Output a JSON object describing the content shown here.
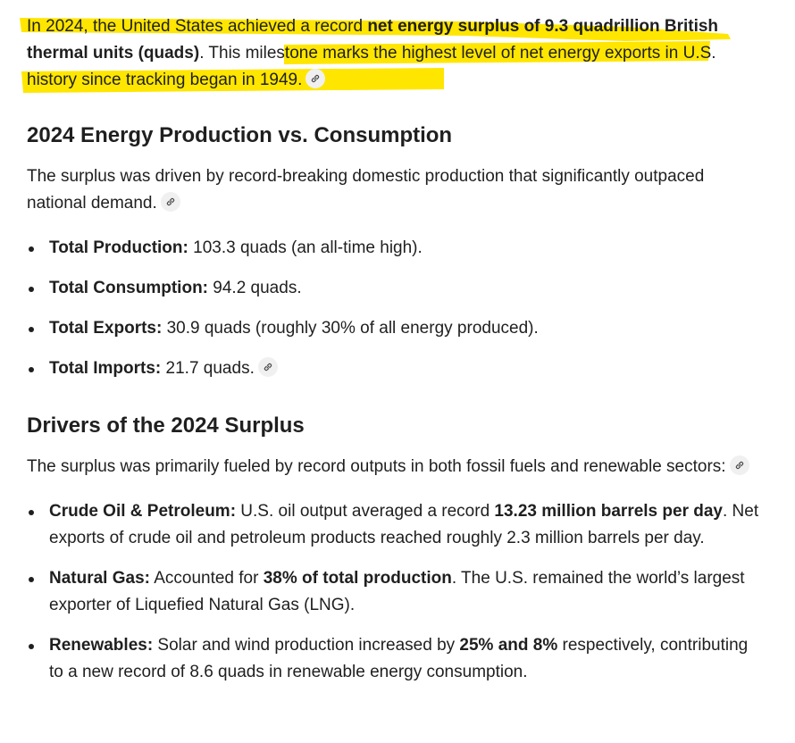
{
  "intro": {
    "t1": "In 2024, the United States achieved a record ",
    "b1": "net energy surplus of 9.3 quadrillion British thermal units (quads)",
    "t2": ". ",
    "t3": "This milestone marks the highest level of net energy exports in U.S. history since tracking began in 1949.",
    "highlight_color": "#ffe600"
  },
  "section1": {
    "heading": "2024 Energy Production vs. Consumption",
    "para": "The surplus was driven by record-breaking domestic production that significantly outpaced national demand.",
    "items": [
      {
        "label": "Total Production:",
        "text": " 103.3 quads (an all-time high)."
      },
      {
        "label": "Total Consumption:",
        "text": " 94.2 quads."
      },
      {
        "label": "Total Exports:",
        "text": " 30.9 quads (roughly 30% of all energy produced)."
      },
      {
        "label": "Total Imports:",
        "text": " 21.7 quads."
      }
    ]
  },
  "section2": {
    "heading": "Drivers of the 2024 Surplus",
    "para": "The surplus was primarily fueled by record outputs in both fossil fuels and renewable sectors:",
    "items": [
      {
        "label": "Crude Oil & Petroleum:",
        "t1": " U.S. oil output averaged a record ",
        "b1": "13.23 million barrels per day",
        "t2": ". Net exports of crude oil and petroleum products reached roughly 2.3 million barrels per day."
      },
      {
        "label": "Natural Gas:",
        "t1": " Accounted for ",
        "b1": "38% of total production",
        "t2": ". The U.S. remained the world’s largest exporter of Liquefied Natural Gas (LNG)."
      },
      {
        "label": "Renewables:",
        "t1": " Solar and wind production increased by ",
        "b1": "25% and 8%",
        "t2": " respectively, contributing to a new record of 8.6 quads in renewable energy consumption."
      }
    ]
  },
  "icons": {
    "link": "link-icon"
  }
}
